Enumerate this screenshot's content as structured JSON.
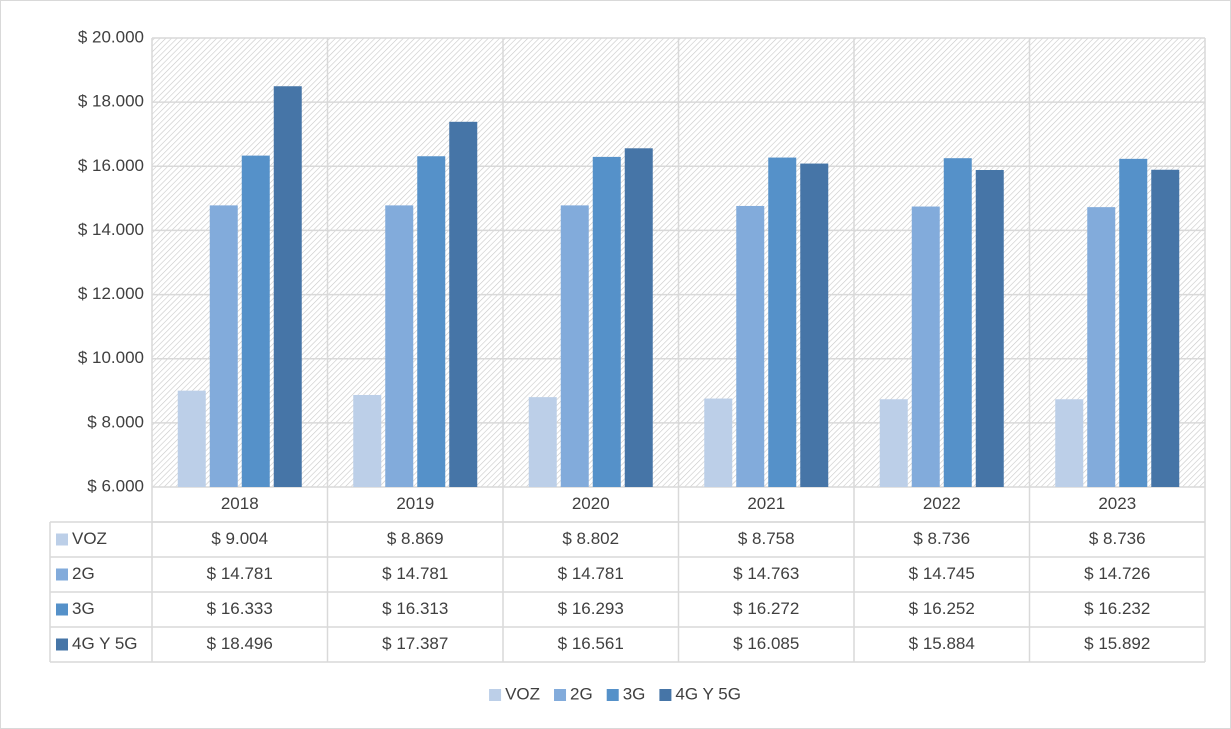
{
  "chart_data": {
    "type": "bar",
    "categories": [
      "2018",
      "2019",
      "2020",
      "2021",
      "2022",
      "2023"
    ],
    "series": [
      {
        "name": "VOZ",
        "color": "#bccfe8",
        "values": [
          9004,
          8869,
          8802,
          8758,
          8736,
          8736
        ],
        "value_labels": [
          "$ 9.004",
          "$ 8.869",
          "$ 8.802",
          "$ 8.758",
          "$ 8.736",
          "$ 8.736"
        ]
      },
      {
        "name": "2G",
        "color": "#82abdb",
        "values": [
          14781,
          14781,
          14781,
          14763,
          14745,
          14726
        ],
        "value_labels": [
          "$ 14.781",
          "$ 14.781",
          "$ 14.781",
          "$ 14.763",
          "$ 14.745",
          "$ 14.726"
        ]
      },
      {
        "name": "3G",
        "color": "#5591c9",
        "values": [
          16333,
          16313,
          16293,
          16272,
          16252,
          16232
        ],
        "value_labels": [
          "$ 16.333",
          "$ 16.313",
          "$ 16.293",
          "$ 16.272",
          "$ 16.252",
          "$ 16.232"
        ]
      },
      {
        "name": "4G Y 5G",
        "color": "#4675a7",
        "values": [
          18496,
          17387,
          16561,
          16085,
          15884,
          15892
        ],
        "value_labels": [
          "$ 18.496",
          "$ 17.387",
          "$ 16.561",
          "$ 16.085",
          "$ 15.884",
          "$ 15.892"
        ]
      }
    ],
    "ylim": [
      6000,
      20000
    ],
    "yticks": [
      {
        "value": 6000,
        "label": "$ 6.000"
      },
      {
        "value": 8000,
        "label": "$ 8.000"
      },
      {
        "value": 10000,
        "label": "$ 10.000"
      },
      {
        "value": 12000,
        "label": "$ 12.000"
      },
      {
        "value": 14000,
        "label": "$ 14.000"
      },
      {
        "value": 16000,
        "label": "$ 16.000"
      },
      {
        "value": 18000,
        "label": "$ 18.000"
      },
      {
        "value": 20000,
        "label": "$ 20.000"
      }
    ],
    "grid": true,
    "legend": "bottom"
  }
}
